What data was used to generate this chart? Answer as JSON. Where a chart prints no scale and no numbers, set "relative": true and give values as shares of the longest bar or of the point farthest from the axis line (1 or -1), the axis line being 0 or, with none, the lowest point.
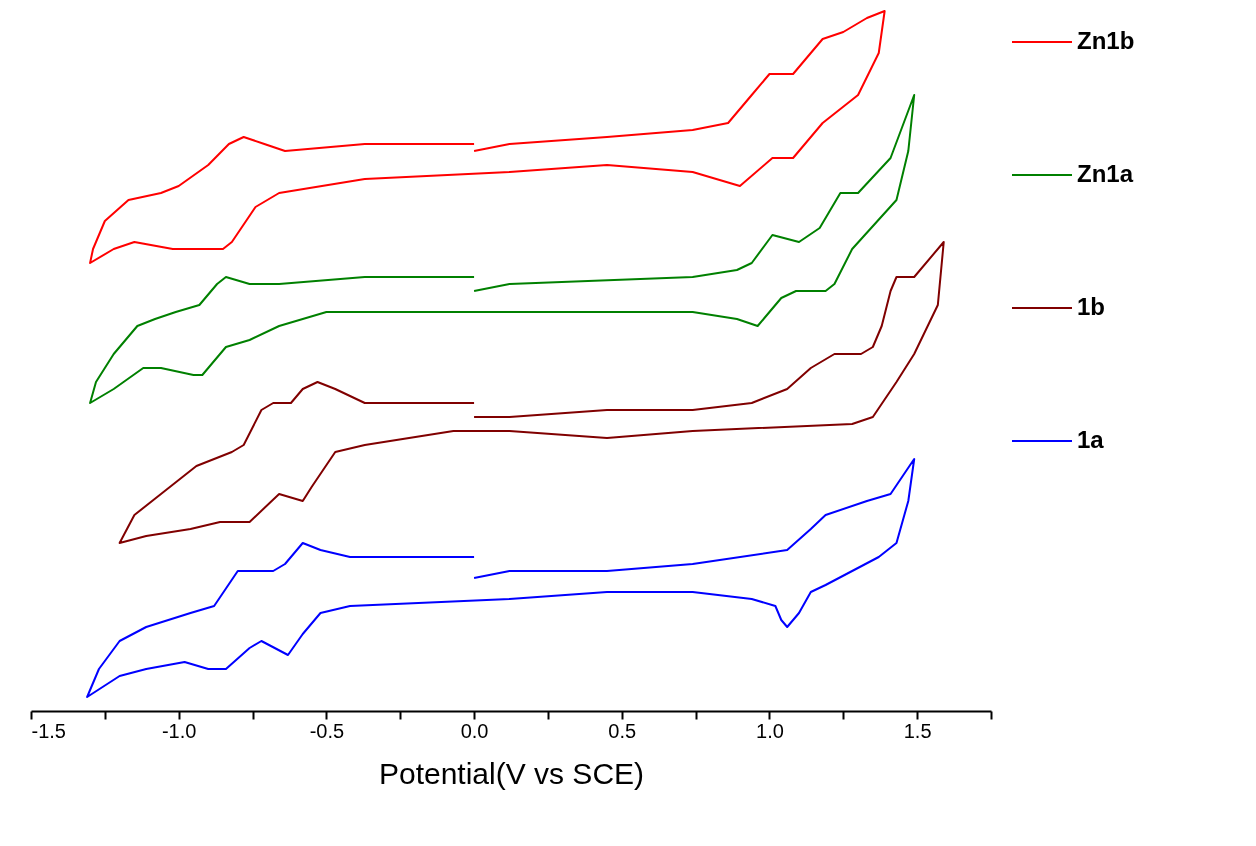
{
  "chart_data": {
    "type": "line",
    "relative": true,
    "xlabel": "Potential(V vs SCE)",
    "xlim": [
      -1.5,
      1.75
    ],
    "xticks": [
      -1.5,
      {
        "value": -1.25,
        "label": null
      },
      {
        "value": -1,
        "label": "-1.0"
      },
      {
        "value": -0.75,
        "label": null
      },
      -0.5,
      {
        "value": -0.25,
        "label": null
      },
      {
        "value": 0,
        "label": "0.0"
      },
      {
        "value": 0.25,
        "label": null
      },
      0.5,
      {
        "value": 0.75,
        "label": null
      },
      {
        "value": 1,
        "label": "1.0"
      },
      {
        "value": 1.25,
        "label": null
      },
      1.5,
      {
        "value": 1.75,
        "label": null
      }
    ],
    "tick_labels": "x",
    "legend": "right",
    "grid": false,
    "marker": "none",
    "line_style": "solid",
    "series": [
      {
        "name": "Zn1b",
        "color": "#ff0000",
        "x": [
          0.0,
          0.12,
          0.45,
          0.74,
          0.86,
          0.94,
          1.0,
          1.08,
          1.12,
          1.18,
          1.25,
          1.33,
          1.39,
          1.37,
          1.3,
          1.18,
          1.08,
          1.01,
          0.9,
          0.74,
          0.45,
          0.12,
          -0.37,
          -0.66,
          -0.74,
          -0.82,
          -0.85,
          -0.92,
          -1.02,
          -1.15,
          -1.22,
          -1.3,
          -1.29,
          -1.25,
          -1.17,
          -1.06,
          -1.0,
          -0.9,
          -0.83,
          -0.78,
          -0.71,
          -0.64,
          -0.37,
          0.0
        ],
        "values": [
          0.8,
          0.81,
          0.82,
          0.83,
          0.84,
          0.88,
          0.91,
          0.91,
          0.93,
          0.96,
          0.97,
          0.99,
          1.0,
          0.94,
          0.88,
          0.84,
          0.79,
          0.79,
          0.75,
          0.77,
          0.78,
          0.77,
          0.76,
          0.74,
          0.72,
          0.67,
          0.66,
          0.66,
          0.66,
          0.67,
          0.66,
          0.64,
          0.66,
          0.7,
          0.73,
          0.74,
          0.75,
          0.78,
          0.81,
          0.82,
          0.81,
          0.8,
          0.81,
          0.81
        ]
      },
      {
        "name": "Zn1a",
        "color": "#008000",
        "x": [
          0.0,
          0.12,
          0.74,
          0.89,
          0.94,
          1.01,
          1.1,
          1.17,
          1.24,
          1.3,
          1.41,
          1.49,
          1.47,
          1.43,
          1.28,
          1.22,
          1.19,
          1.09,
          1.04,
          1.0,
          0.96,
          0.89,
          0.74,
          0.12,
          -0.27,
          -0.5,
          -0.66,
          -0.76,
          -0.84,
          -0.92,
          -0.95,
          -1.06,
          -1.12,
          -1.22,
          -1.3,
          -1.28,
          -1.22,
          -1.14,
          -1.08,
          -1.01,
          -0.93,
          -0.87,
          -0.84,
          -0.76,
          -0.66,
          -0.37,
          0.0
        ],
        "values": [
          0.6,
          0.61,
          0.62,
          0.63,
          0.64,
          0.68,
          0.67,
          0.69,
          0.74,
          0.74,
          0.79,
          0.88,
          0.8,
          0.73,
          0.66,
          0.61,
          0.6,
          0.6,
          0.59,
          0.57,
          0.55,
          0.56,
          0.57,
          0.57,
          0.57,
          0.57,
          0.55,
          0.53,
          0.52,
          0.48,
          0.48,
          0.49,
          0.49,
          0.46,
          0.44,
          0.47,
          0.51,
          0.55,
          0.56,
          0.57,
          0.58,
          0.61,
          0.62,
          0.61,
          0.61,
          0.62,
          0.62
        ]
      },
      {
        "name": "1b",
        "color": "#800000",
        "x": [
          0.0,
          0.12,
          0.45,
          0.74,
          0.94,
          1.06,
          1.14,
          1.22,
          1.31,
          1.35,
          1.38,
          1.41,
          1.43,
          1.49,
          1.59,
          1.57,
          1.49,
          1.43,
          1.35,
          1.28,
          0.74,
          0.45,
          0.12,
          -0.07,
          -0.37,
          -0.47,
          -0.55,
          -0.58,
          -0.66,
          -0.76,
          -0.86,
          -0.96,
          -1.11,
          -1.2,
          -1.15,
          -1.06,
          -0.94,
          -0.82,
          -0.78,
          -0.72,
          -0.68,
          -0.62,
          -0.58,
          -0.53,
          -0.47,
          -0.37,
          -0.19,
          0.0
        ],
        "values": [
          0.42,
          0.42,
          0.43,
          0.43,
          0.44,
          0.46,
          0.49,
          0.51,
          0.51,
          0.52,
          0.55,
          0.6,
          0.62,
          0.62,
          0.67,
          0.58,
          0.51,
          0.47,
          0.42,
          0.41,
          0.4,
          0.39,
          0.4,
          0.4,
          0.38,
          0.37,
          0.32,
          0.3,
          0.31,
          0.27,
          0.27,
          0.26,
          0.25,
          0.24,
          0.28,
          0.31,
          0.35,
          0.37,
          0.38,
          0.43,
          0.44,
          0.44,
          0.46,
          0.47,
          0.46,
          0.44,
          0.44,
          0.44
        ]
      },
      {
        "name": "1a",
        "color": "#0000ff",
        "x": [
          0.0,
          0.12,
          0.45,
          0.74,
          1.06,
          1.14,
          1.19,
          1.33,
          1.41,
          1.49,
          1.47,
          1.43,
          1.37,
          1.19,
          1.14,
          1.1,
          1.06,
          1.04,
          1.02,
          0.94,
          0.74,
          0.45,
          0.12,
          -0.42,
          -0.52,
          -0.58,
          -0.63,
          -0.72,
          -0.76,
          -0.84,
          -0.9,
          -0.98,
          -1.11,
          -1.2,
          -1.31,
          -1.27,
          -1.2,
          -1.11,
          -0.96,
          -0.88,
          -0.8,
          -0.76,
          -0.68,
          -0.64,
          -0.58,
          -0.52,
          -0.42,
          -0.27,
          0.0
        ],
        "values": [
          0.19,
          0.2,
          0.2,
          0.21,
          0.23,
          0.26,
          0.28,
          0.3,
          0.31,
          0.36,
          0.3,
          0.24,
          0.22,
          0.18,
          0.17,
          0.14,
          0.12,
          0.13,
          0.15,
          0.16,
          0.17,
          0.17,
          0.16,
          0.15,
          0.14,
          0.11,
          0.08,
          0.1,
          0.09,
          0.06,
          0.06,
          0.07,
          0.06,
          0.05,
          0.02,
          0.06,
          0.1,
          0.12,
          0.14,
          0.15,
          0.2,
          0.2,
          0.2,
          0.21,
          0.24,
          0.23,
          0.22,
          0.22,
          0.22
        ]
      }
    ]
  }
}
